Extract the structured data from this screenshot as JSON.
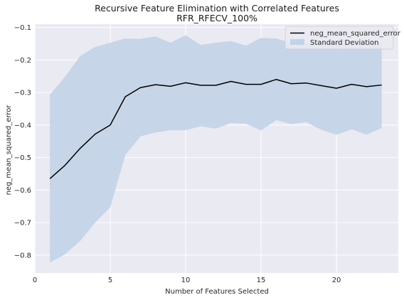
{
  "chart_data": {
    "type": "line",
    "title": "Recursive Feature Elimination with Correlated Features",
    "subtitle": "RFR_RFECV_100%",
    "xlabel": "Number of Features Selected",
    "ylabel": "neg_mean_squared_error",
    "xlim": [
      0,
      24.1
    ],
    "ylim": [
      -0.855,
      -0.09
    ],
    "xticks": [
      0,
      5,
      10,
      15,
      20
    ],
    "yticks": [
      -0.8,
      -0.7,
      -0.6,
      -0.5,
      -0.4,
      -0.3,
      -0.2,
      -0.1
    ],
    "grid": true,
    "legend_position": "top-right",
    "x": [
      1,
      2,
      3,
      4,
      5,
      6,
      7,
      8,
      9,
      10,
      11,
      12,
      13,
      14,
      15,
      16,
      17,
      18,
      19,
      20,
      21,
      22,
      23
    ],
    "series": [
      {
        "name": "neg_mean_squared_error",
        "kind": "line",
        "color": "#000000",
        "values": [
          -0.565,
          -0.524,
          -0.472,
          -0.428,
          -0.4,
          -0.313,
          -0.285,
          -0.276,
          -0.281,
          -0.27,
          -0.278,
          -0.278,
          -0.266,
          -0.275,
          -0.275,
          -0.26,
          -0.273,
          -0.271,
          -0.279,
          -0.287,
          -0.275,
          -0.282,
          -0.277
        ]
      },
      {
        "name": "Standard Deviation",
        "kind": "band",
        "color": "#c2d3e6",
        "upper": [
          -0.307,
          -0.252,
          -0.188,
          -0.16,
          -0.147,
          -0.134,
          -0.135,
          -0.128,
          -0.147,
          -0.124,
          -0.154,
          -0.147,
          -0.142,
          -0.156,
          -0.132,
          -0.134,
          -0.148,
          -0.148,
          -0.144,
          -0.144,
          -0.143,
          -0.15,
          -0.145
        ],
        "lower": [
          -0.823,
          -0.797,
          -0.757,
          -0.7,
          -0.653,
          -0.492,
          -0.435,
          -0.423,
          -0.416,
          -0.416,
          -0.404,
          -0.411,
          -0.394,
          -0.396,
          -0.417,
          -0.385,
          -0.397,
          -0.391,
          -0.415,
          -0.43,
          -0.413,
          -0.43,
          -0.409
        ]
      }
    ]
  },
  "colors": {
    "plot_background": "#eaeaf2",
    "grid": "#ffffff",
    "line": "#000000",
    "band": "#c2d3e6"
  }
}
